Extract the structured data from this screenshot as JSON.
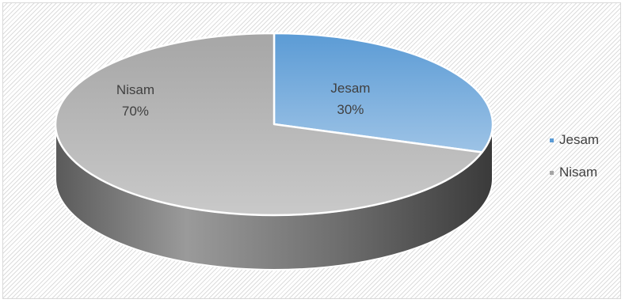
{
  "chart_data": {
    "type": "pie",
    "style": "3d",
    "categories": [
      "Jesam",
      "Nisam"
    ],
    "values": [
      30,
      70
    ],
    "data_labels": [
      {
        "name": "Jesam",
        "value": "30%"
      },
      {
        "name": "Nisam",
        "value": "70%"
      }
    ],
    "colors": [
      "#5b9bd5",
      "#a5a5a5"
    ],
    "legend": {
      "placement": "right",
      "entries": [
        "Jesam",
        "Nisam"
      ]
    }
  }
}
